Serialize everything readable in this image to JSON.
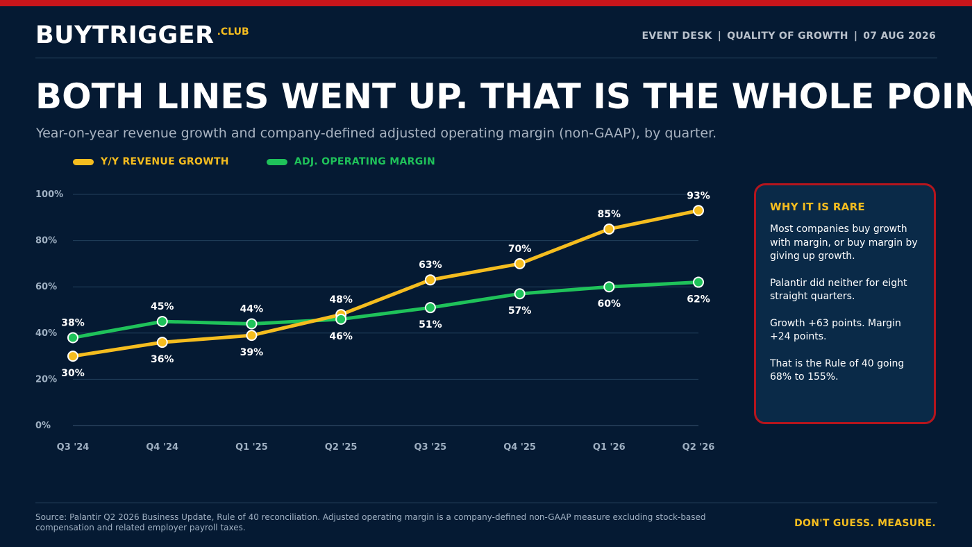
{
  "brand": {
    "name": "BUYTRIGGER",
    "tld": ".CLUB"
  },
  "header_meta": {
    "desk": "EVENT DESK",
    "section": "QUALITY OF GROWTH",
    "date": "07 AUG 2026",
    "separator": "|"
  },
  "headline": "BOTH LINES WENT UP. THAT IS THE WHOLE POINT.",
  "subtitle": "Year-on-year revenue growth and company-defined adjusted operating margin (non-GAAP), by quarter.",
  "colors": {
    "accent_red": "#c8151b",
    "revenue": "#f5bd1f",
    "margin": "#1fc25a",
    "background": "#051a33"
  },
  "chart_data": {
    "type": "line",
    "categories": [
      "Q3 '24",
      "Q4 '24",
      "Q1 '25",
      "Q2 '25",
      "Q3 '25",
      "Q4 '25",
      "Q1 '26",
      "Q2 '26"
    ],
    "series": [
      {
        "name": "Y/Y REVENUE GROWTH",
        "color": "#f5bd1f",
        "values": [
          30,
          36,
          39,
          48,
          63,
          70,
          85,
          93
        ],
        "labels": [
          "30%",
          "36%",
          "39%",
          "48%",
          "63%",
          "70%",
          "85%",
          "93%"
        ]
      },
      {
        "name": "ADJ. OPERATING MARGIN",
        "color": "#1fc25a",
        "values": [
          38,
          45,
          44,
          46,
          51,
          57,
          60,
          62
        ],
        "labels": [
          "38%",
          "45%",
          "44%",
          "46%",
          "51%",
          "57%",
          "60%",
          "62%"
        ]
      }
    ],
    "yticks": [
      "0%",
      "20%",
      "40%",
      "60%",
      "80%",
      "100%"
    ],
    "ylim": [
      0,
      100
    ],
    "grid": true,
    "legend_position": "top-left"
  },
  "sidebar": {
    "title": "WHY IT IS RARE",
    "paragraphs": [
      "Most companies buy growth with margin, or buy margin by giving up growth.",
      "Palantir did neither for eight straight quarters.",
      "Growth +63 points. Margin +24 points.",
      "That is the Rule of 40 going 68% to 155%."
    ]
  },
  "footer": {
    "source": "Source: Palantir Q2 2026 Business Update, Rule of 40 reconciliation. Adjusted operating margin is a company-defined non-GAAP measure excluding stock-based compensation and related employer payroll taxes.",
    "tagline": "DON'T GUESS. MEASURE."
  }
}
